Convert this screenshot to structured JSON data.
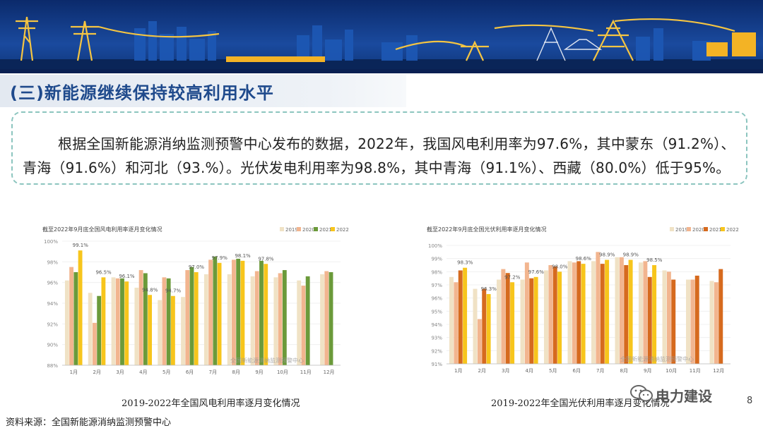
{
  "header": {
    "section_title": "(三)新能源继续保持较高利用水平"
  },
  "summary": {
    "line1": "根据全国新能源消纳监测预警中心发布的数据，2022年，我国风电利用率为97.6%，其中蒙东（91.2%）、",
    "line2": "青海（91.6%）和河北（93.%）。光伏发电利用率为98.8%，其中青海（91.1%）、西藏（80.0%）低于95%。"
  },
  "colors": {
    "title": "#1f4a8c",
    "frame": "#8cc5bf",
    "s2019": "#f0e2c5",
    "s2020": "#f2b58f",
    "s2021_wind": "#6b9a3a",
    "s2021_pv": "#d66a1e",
    "s2022": "#f7c51c"
  },
  "chart_data": [
    {
      "type": "bar",
      "title": "截至2022年9月底全国风电利用率逐月变化情况",
      "caption": "2019-2022年全国风电利用率逐月变化情况",
      "watermark": "全国新能源消纳监测预警中心",
      "categories": [
        "1月",
        "2月",
        "3月",
        "4月",
        "5月",
        "6月",
        "7月",
        "8月",
        "9月",
        "10月",
        "11月",
        "12月"
      ],
      "yticks": [
        "100%",
        "98%",
        "96%",
        "94%",
        "92%",
        "90%",
        "88%"
      ],
      "ylim": [
        88,
        100
      ],
      "series": [
        {
          "name": "2019",
          "values": [
            96.2,
            95.0,
            96.5,
            95.5,
            94.3,
            94.6,
            96.8,
            96.8,
            96.6,
            96.5,
            96.2,
            96.8
          ]
        },
        {
          "name": "2020",
          "values": [
            97.5,
            92.1,
            96.4,
            97.2,
            96.5,
            97.2,
            98.2,
            98.2,
            97.1,
            96.9,
            95.7,
            97.1
          ]
        },
        {
          "name": "2021",
          "values": [
            97.0,
            94.7,
            96.4,
            96.9,
            96.4,
            97.5,
            98.5,
            98.3,
            98.1,
            97.2,
            96.6,
            97.0
          ]
        },
        {
          "name": "2022",
          "values": [
            99.1,
            96.5,
            96.1,
            94.8,
            94.7,
            97.0,
            97.9,
            98.1,
            97.8,
            null,
            null,
            null
          ]
        }
      ],
      "data_labels": [
        "99.1%",
        "96.5%",
        "96.1%",
        "94.8%",
        "94.7%",
        "97.0%",
        "97.9%",
        "98.1%",
        "97.8%"
      ]
    },
    {
      "type": "bar",
      "title": "截至2022年9月底全国光伏利用率逐月变化情况",
      "caption": "2019-2022年全国光伏利用率逐月变化情况",
      "watermark": "全国新能源消纳监测预警中心",
      "categories": [
        "1月",
        "2月",
        "3月",
        "4月",
        "5月",
        "6月",
        "7月",
        "8月",
        "9月",
        "10月",
        "11月",
        "12月"
      ],
      "yticks": [
        "100%",
        "99%",
        "98%",
        "97%",
        "96%",
        "95%",
        "94%",
        "93%",
        "92%",
        "91%"
      ],
      "ylim": [
        91,
        100
      ],
      "series": [
        {
          "name": "2019",
          "values": [
            97.6,
            96.7,
            97.4,
            97.4,
            98.1,
            98.8,
            98.8,
            99.1,
            98.7,
            98.1,
            97.4,
            97.3
          ]
        },
        {
          "name": "2020",
          "values": [
            97.2,
            94.4,
            98.2,
            98.7,
            98.5,
            98.7,
            99.5,
            99.1,
            98.8,
            98.0,
            97.4,
            97.2
          ]
        },
        {
          "name": "2021",
          "values": [
            98.1,
            96.7,
            97.9,
            97.5,
            98.4,
            98.8,
            98.6,
            98.5,
            97.6,
            97.4,
            97.7,
            98.2
          ]
        },
        {
          "name": "2022",
          "values": [
            98.3,
            96.3,
            97.2,
            97.6,
            98.0,
            98.6,
            98.9,
            98.9,
            98.5,
            null,
            null,
            null
          ]
        }
      ],
      "data_labels": [
        "98.3%",
        "96.3%",
        "97.2%",
        "97.6%",
        "98.0%",
        "98.6%",
        "98.9%",
        "98.9%",
        "98.5%"
      ]
    }
  ],
  "footer": {
    "source": "资料来源：全国新能源消纳监测预警中心",
    "page_number": "8",
    "brand": "电力建设"
  }
}
